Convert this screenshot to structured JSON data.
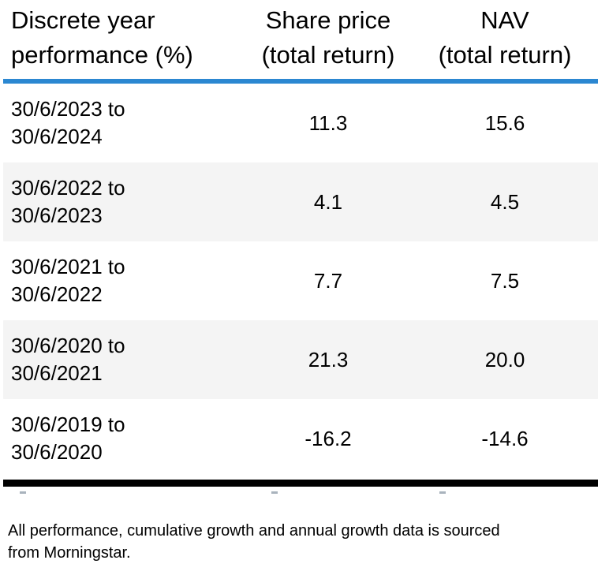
{
  "colors": {
    "accent_blue": "#2B87D1",
    "alt_row_gray": "#F4F4F4",
    "rule_black": "#000000",
    "text": "#000000"
  },
  "table": {
    "header": {
      "title_line1": "Discrete year",
      "title_line2": "performance (%)",
      "share_price_line1": "Share price",
      "share_price_line2": "(total return)",
      "nav_line1": "NAV",
      "nav_line2": "(total return)"
    },
    "rows": [
      {
        "period_line1": "30/6/2023 to",
        "period_line2": "30/6/2024",
        "share_price": "11.3",
        "nav": "15.6"
      },
      {
        "period_line1": "30/6/2022 to",
        "period_line2": "30/6/2023",
        "share_price": "4.1",
        "nav": "4.5"
      },
      {
        "period_line1": "30/6/2021 to",
        "period_line2": "30/6/2022",
        "share_price": "7.7",
        "nav": "7.5"
      },
      {
        "period_line1": "30/6/2020 to",
        "period_line2": "30/6/2021",
        "share_price": "21.3",
        "nav": "20.0"
      },
      {
        "period_line1": "30/6/2019 to",
        "period_line2": "30/6/2020",
        "share_price": "-16.2",
        "nav": "-14.6"
      }
    ]
  },
  "footnote": "All performance, cumulative growth and annual growth data is sourced from Morningstar.",
  "chart_data": {
    "type": "table",
    "title": "Discrete year performance (%)",
    "categories": [
      "30/6/2023 to 30/6/2024",
      "30/6/2022 to 30/6/2023",
      "30/6/2021 to 30/6/2022",
      "30/6/2020 to 30/6/2021",
      "30/6/2019 to 30/6/2020"
    ],
    "series": [
      {
        "name": "Share price (total return)",
        "values": [
          11.3,
          4.1,
          7.7,
          21.3,
          -16.2
        ]
      },
      {
        "name": "NAV (total return)",
        "values": [
          15.6,
          4.5,
          7.5,
          20.0,
          -14.6
        ]
      }
    ],
    "units": "percent",
    "source_note": "All performance, cumulative growth and annual growth data is sourced from Morningstar."
  }
}
